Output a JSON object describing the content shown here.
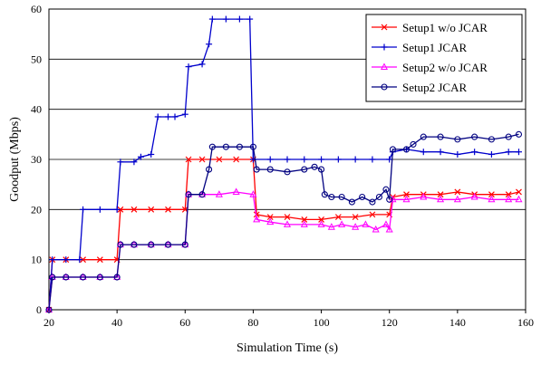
{
  "chart_data": {
    "type": "line",
    "title": "",
    "xlabel": "Simulation Time (s)",
    "ylabel": "Goodput (Mbps)",
    "xlim": [
      20,
      160
    ],
    "ylim": [
      0,
      60
    ],
    "x_ticks": [
      20,
      40,
      60,
      80,
      100,
      120,
      140,
      160
    ],
    "y_ticks": [
      0,
      10,
      20,
      30,
      40,
      50,
      60
    ],
    "grid": "horizontal",
    "legend_position": "top-right",
    "series": [
      {
        "name": "Setup1 w/o JCAR",
        "color": "#ff0000",
        "marker": "x-cross",
        "points": [
          [
            20,
            0
          ],
          [
            21,
            10
          ],
          [
            25,
            10
          ],
          [
            30,
            10
          ],
          [
            35,
            10
          ],
          [
            40,
            10
          ],
          [
            41,
            20
          ],
          [
            45,
            20
          ],
          [
            50,
            20
          ],
          [
            55,
            20
          ],
          [
            60,
            20
          ],
          [
            61,
            30
          ],
          [
            65,
            30
          ],
          [
            70,
            30
          ],
          [
            75,
            30
          ],
          [
            80,
            30
          ],
          [
            81,
            19
          ],
          [
            85,
            18.5
          ],
          [
            90,
            18.5
          ],
          [
            95,
            18
          ],
          [
            100,
            18
          ],
          [
            105,
            18.5
          ],
          [
            110,
            18.5
          ],
          [
            115,
            19
          ],
          [
            120,
            19
          ],
          [
            121,
            22.5
          ],
          [
            125,
            23
          ],
          [
            130,
            23
          ],
          [
            135,
            23
          ],
          [
            140,
            23.5
          ],
          [
            145,
            23
          ],
          [
            150,
            23
          ],
          [
            155,
            23
          ],
          [
            158,
            23.5
          ]
        ]
      },
      {
        "name": "Setup1 JCAR",
        "color": "#0000cc",
        "marker": "plus",
        "points": [
          [
            20,
            0
          ],
          [
            21,
            10
          ],
          [
            25,
            10
          ],
          [
            29,
            10
          ],
          [
            30,
            20
          ],
          [
            35,
            20
          ],
          [
            40,
            20
          ],
          [
            41,
            29.5
          ],
          [
            45,
            29.5
          ],
          [
            47,
            30.5
          ],
          [
            50,
            31
          ],
          [
            52,
            38.5
          ],
          [
            55,
            38.5
          ],
          [
            57,
            38.5
          ],
          [
            60,
            39
          ],
          [
            61,
            48.5
          ],
          [
            65,
            49
          ],
          [
            67,
            53
          ],
          [
            68,
            58
          ],
          [
            72,
            58
          ],
          [
            76,
            58
          ],
          [
            79,
            58
          ],
          [
            80,
            30
          ],
          [
            85,
            30
          ],
          [
            90,
            30
          ],
          [
            95,
            30
          ],
          [
            100,
            30
          ],
          [
            105,
            30
          ],
          [
            110,
            30
          ],
          [
            115,
            30
          ],
          [
            120,
            30
          ],
          [
            121,
            31.5
          ],
          [
            125,
            32
          ],
          [
            130,
            31.5
          ],
          [
            135,
            31.5
          ],
          [
            140,
            31
          ],
          [
            145,
            31.5
          ],
          [
            150,
            31
          ],
          [
            155,
            31.5
          ],
          [
            158,
            31.5
          ]
        ]
      },
      {
        "name": "Setup2 w/o JCAR",
        "color": "#ff00ff",
        "marker": "triangle",
        "points": [
          [
            20,
            0
          ],
          [
            21,
            6.5
          ],
          [
            25,
            6.5
          ],
          [
            30,
            6.5
          ],
          [
            35,
            6.5
          ],
          [
            40,
            6.5
          ],
          [
            41,
            13
          ],
          [
            45,
            13
          ],
          [
            50,
            13
          ],
          [
            55,
            13
          ],
          [
            60,
            13
          ],
          [
            61,
            23
          ],
          [
            65,
            23
          ],
          [
            70,
            23
          ],
          [
            75,
            23.5
          ],
          [
            80,
            23
          ],
          [
            81,
            18
          ],
          [
            85,
            17.5
          ],
          [
            90,
            17
          ],
          [
            95,
            17
          ],
          [
            100,
            17
          ],
          [
            103,
            16.5
          ],
          [
            106,
            17
          ],
          [
            110,
            16.5
          ],
          [
            113,
            17
          ],
          [
            116,
            16
          ],
          [
            119,
            17
          ],
          [
            120,
            16
          ],
          [
            121,
            22
          ],
          [
            125,
            22
          ],
          [
            130,
            22.5
          ],
          [
            135,
            22
          ],
          [
            140,
            22
          ],
          [
            145,
            22.5
          ],
          [
            150,
            22
          ],
          [
            155,
            22
          ],
          [
            158,
            22
          ]
        ]
      },
      {
        "name": "Setup2 JCAR",
        "color": "#000080",
        "marker": "circle",
        "points": [
          [
            20,
            0
          ],
          [
            21,
            6.5
          ],
          [
            25,
            6.5
          ],
          [
            30,
            6.5
          ],
          [
            35,
            6.5
          ],
          [
            40,
            6.5
          ],
          [
            41,
            13
          ],
          [
            45,
            13
          ],
          [
            50,
            13
          ],
          [
            55,
            13
          ],
          [
            60,
            13
          ],
          [
            61,
            23
          ],
          [
            65,
            23
          ],
          [
            67,
            28
          ],
          [
            68,
            32.5
          ],
          [
            72,
            32.5
          ],
          [
            76,
            32.5
          ],
          [
            80,
            32.5
          ],
          [
            81,
            28
          ],
          [
            85,
            28
          ],
          [
            90,
            27.5
          ],
          [
            95,
            28
          ],
          [
            98,
            28.5
          ],
          [
            100,
            28
          ],
          [
            101,
            23
          ],
          [
            103,
            22.5
          ],
          [
            106,
            22.5
          ],
          [
            109,
            21.5
          ],
          [
            112,
            22.5
          ],
          [
            115,
            21.5
          ],
          [
            117,
            22.5
          ],
          [
            119,
            24
          ],
          [
            120,
            22
          ],
          [
            121,
            32
          ],
          [
            125,
            32
          ],
          [
            127,
            33
          ],
          [
            130,
            34.5
          ],
          [
            135,
            34.5
          ],
          [
            140,
            34
          ],
          [
            145,
            34.5
          ],
          [
            150,
            34
          ],
          [
            155,
            34.5
          ],
          [
            158,
            35
          ]
        ]
      }
    ]
  }
}
